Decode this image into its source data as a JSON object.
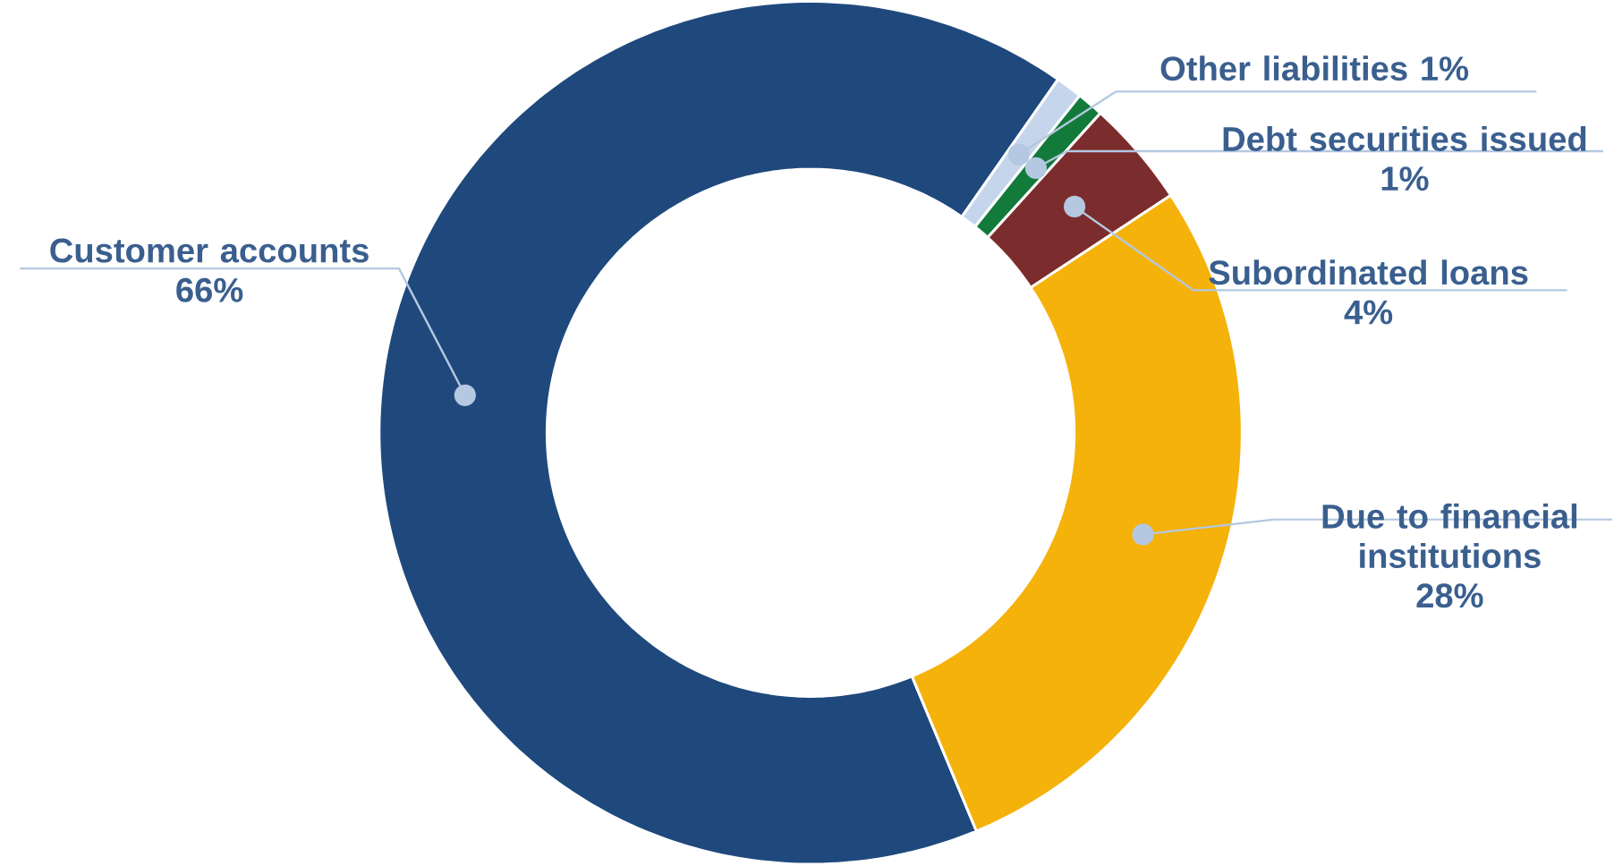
{
  "chart_data": {
    "type": "donut",
    "categories": [
      "Customer accounts",
      "Other liabilities",
      "Debt securities issued",
      "Subordinated loans",
      "Due to financial institutions"
    ],
    "values": [
      66,
      1,
      1,
      4,
      28
    ],
    "colors": [
      "#1f497d",
      "#c5d6ec",
      "#127a3a",
      "#7b2c2c",
      "#f5b20a"
    ],
    "value_labels": [
      "66%",
      "1%",
      "1%",
      "4%",
      "28%"
    ]
  }
}
